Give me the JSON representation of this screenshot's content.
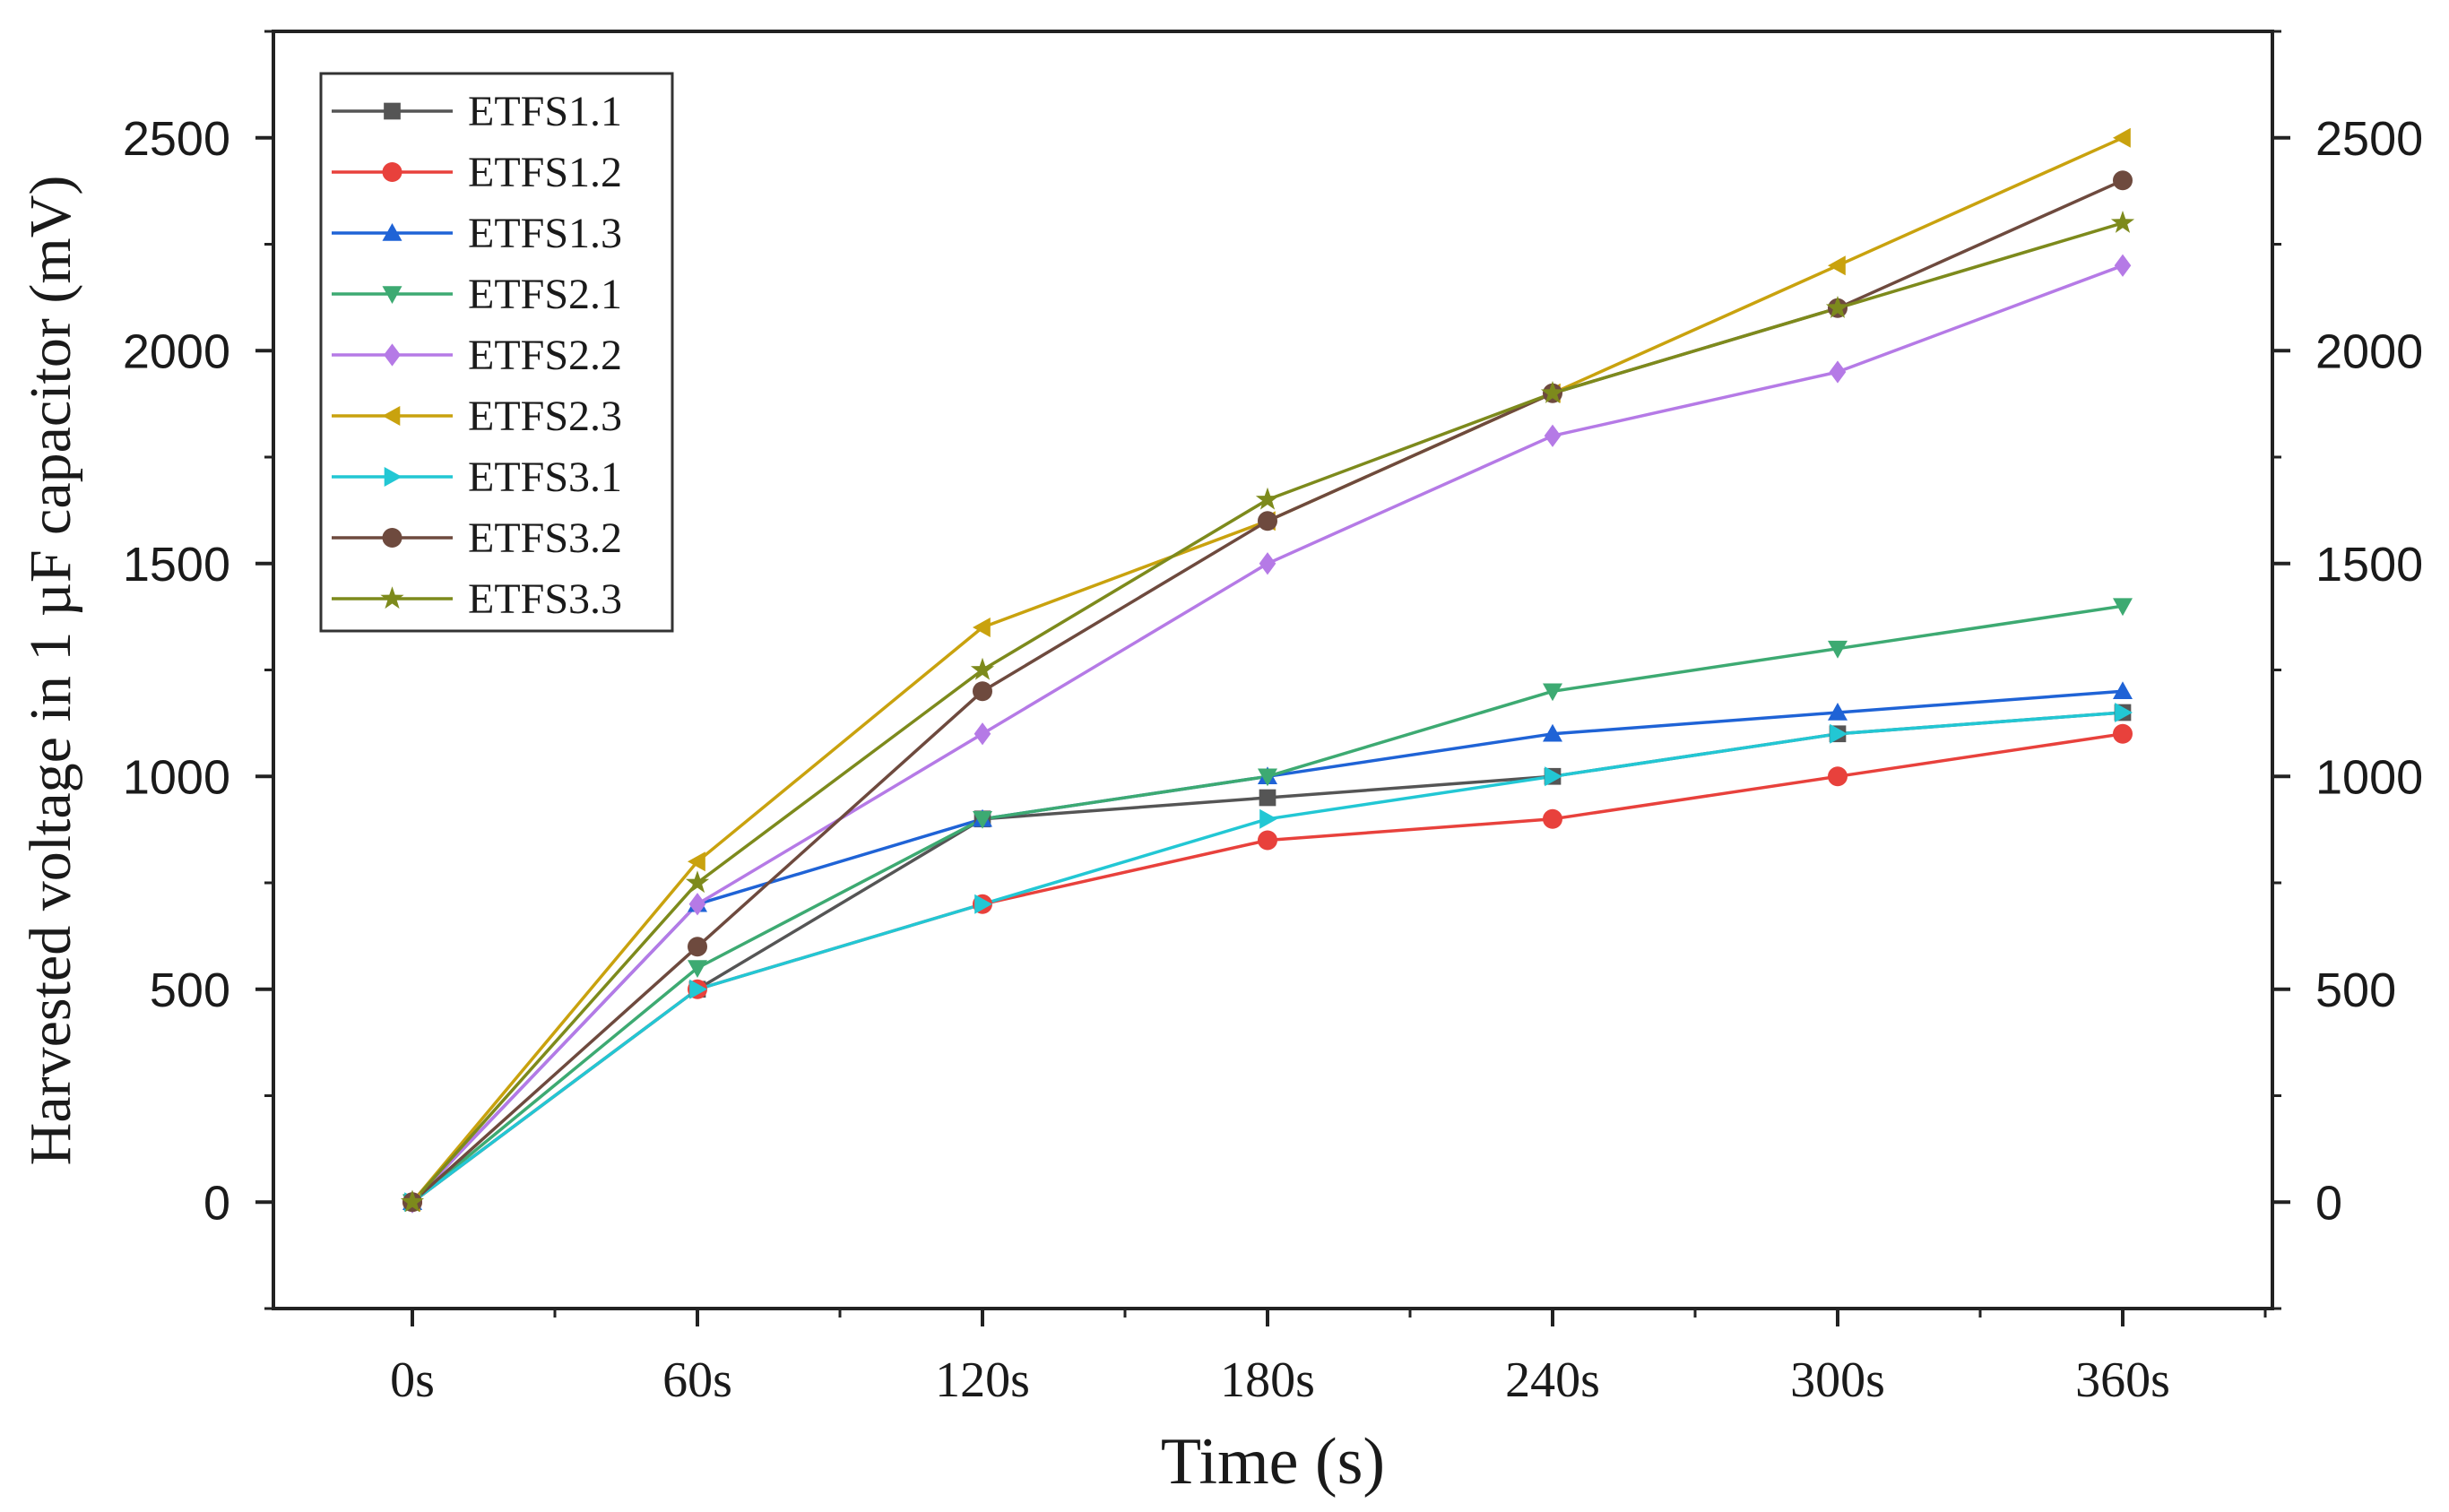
{
  "chart_data": {
    "type": "line",
    "title": "",
    "xlabel": "Time (s)",
    "ylabel": "Harvested voltage in 1 µF capacitor (mV)",
    "categories": [
      "0s",
      "60s",
      "120s",
      "180s",
      "240s",
      "300s",
      "360s"
    ],
    "ylim": [
      -250,
      2750
    ],
    "yticks": [
      0,
      500,
      1000,
      1500,
      2000,
      2500
    ],
    "y_tick_labels": [
      "0",
      "500",
      "1000",
      "1500",
      "2000",
      "2500"
    ],
    "legend_position": "top-left",
    "series": [
      {
        "name": "ETFS1.1",
        "color": "#555555",
        "marker": "square",
        "values": [
          0,
          500,
          900,
          950,
          1000,
          1100,
          1150
        ]
      },
      {
        "name": "ETFS1.2",
        "color": "#e8413c",
        "marker": "circle",
        "values": [
          0,
          500,
          700,
          850,
          900,
          1000,
          1100
        ]
      },
      {
        "name": "ETFS1.3",
        "color": "#1f63d6",
        "marker": "triangle-up",
        "values": [
          0,
          700,
          900,
          1000,
          1100,
          1150,
          1200
        ]
      },
      {
        "name": "ETFS2.1",
        "color": "#3daa72",
        "marker": "triangle-down",
        "values": [
          0,
          550,
          900,
          1000,
          1200,
          1300,
          1400
        ]
      },
      {
        "name": "ETFS2.2",
        "color": "#b57ae6",
        "marker": "diamond",
        "values": [
          0,
          700,
          1100,
          1500,
          1800,
          1950,
          2200
        ]
      },
      {
        "name": "ETFS2.3",
        "color": "#c9a20e",
        "marker": "triangle-left",
        "values": [
          0,
          800,
          1350,
          1600,
          1900,
          2200,
          2500
        ]
      },
      {
        "name": "ETFS3.1",
        "color": "#22c7d4",
        "marker": "triangle-right",
        "values": [
          0,
          500,
          700,
          900,
          1000,
          1100,
          1150
        ]
      },
      {
        "name": "ETFS3.2",
        "color": "#6e4a3e",
        "marker": "circle",
        "values": [
          0,
          600,
          1200,
          1600,
          1900,
          2100,
          2400
        ]
      },
      {
        "name": "ETFS3.3",
        "color": "#7d8a1c",
        "marker": "star",
        "values": [
          0,
          750,
          1250,
          1650,
          1900,
          2100,
          2300
        ]
      }
    ]
  }
}
